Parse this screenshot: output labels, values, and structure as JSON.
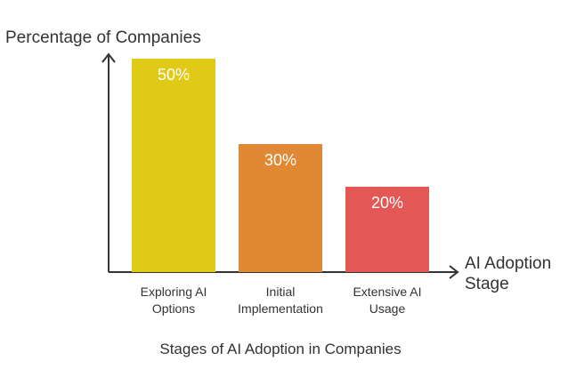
{
  "chart_data": {
    "type": "bar",
    "title": "Stages of AI Adoption in Companies",
    "ylabel": "Percentage of Companies",
    "xlabel_lines": [
      "AI Adoption",
      "Stage"
    ],
    "categories": [
      {
        "lines": [
          "Exploring AI",
          "Options"
        ]
      },
      {
        "lines": [
          "Initial",
          "Implementation"
        ]
      },
      {
        "lines": [
          "Extensive AI",
          "Usage"
        ]
      }
    ],
    "values": [
      50,
      30,
      20
    ],
    "value_labels": [
      "50%",
      "30%",
      "20%"
    ],
    "colors": [
      "#E0CA17",
      "#E08833",
      "#E35854"
    ],
    "ylim": [
      0,
      50
    ],
    "grid": false,
    "legend": "none"
  }
}
